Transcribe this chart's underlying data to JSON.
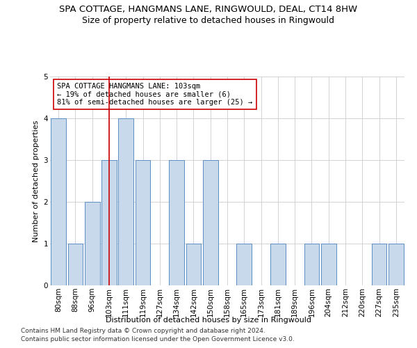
{
  "title": "SPA COTTAGE, HANGMANS LANE, RINGWOULD, DEAL, CT14 8HW",
  "subtitle": "Size of property relative to detached houses in Ringwould",
  "xlabel": "Distribution of detached houses by size in Ringwould",
  "ylabel": "Number of detached properties",
  "footer1": "Contains HM Land Registry data © Crown copyright and database right 2024.",
  "footer2": "Contains public sector information licensed under the Open Government Licence v3.0.",
  "annotation_line1": "SPA COTTAGE HANGMANS LANE: 103sqm",
  "annotation_line2": "← 19% of detached houses are smaller (6)",
  "annotation_line3": "81% of semi-detached houses are larger (25) →",
  "categories": [
    "80sqm",
    "88sqm",
    "96sqm",
    "103sqm",
    "111sqm",
    "119sqm",
    "127sqm",
    "134sqm",
    "142sqm",
    "150sqm",
    "158sqm",
    "165sqm",
    "173sqm",
    "181sqm",
    "189sqm",
    "196sqm",
    "204sqm",
    "212sqm",
    "220sqm",
    "227sqm",
    "235sqm"
  ],
  "values": [
    4,
    1,
    2,
    3,
    4,
    3,
    0,
    3,
    1,
    3,
    0,
    1,
    0,
    1,
    0,
    1,
    1,
    0,
    0,
    1,
    1
  ],
  "highlight_index": 3,
  "bar_color": "#c9d9ec",
  "bar_edge_color": "#5b8ec4",
  "highlight_line_color": "#cc0000",
  "annotation_box_edge_color": "#cc0000",
  "annotation_box_face_color": "#ffffff",
  "background_color": "#ffffff",
  "grid_color": "#cccccc",
  "ylim": [
    0,
    5
  ],
  "yticks": [
    0,
    1,
    2,
    3,
    4,
    5
  ],
  "title_fontsize": 9.5,
  "subtitle_fontsize": 9,
  "axis_label_fontsize": 8,
  "tick_fontsize": 7.5,
  "annotation_fontsize": 7.5,
  "footer_fontsize": 6.5
}
